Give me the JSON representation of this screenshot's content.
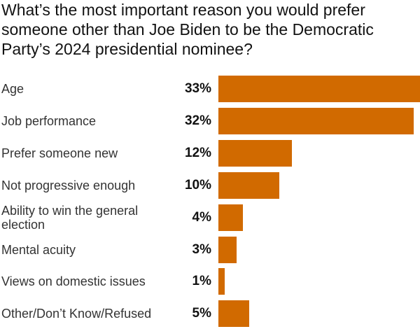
{
  "title": "What’s the most important reason you would prefer someone other than Joe Biden to be the Democratic Party’s 2024 presidential nominee?",
  "colors": {
    "bar": "#d16a00"
  },
  "chart_data": {
    "type": "bar",
    "orientation": "horizontal",
    "title": "What’s the most important reason you would prefer someone other than Joe Biden to be the Democratic Party’s 2024 presidential nominee?",
    "categories": [
      "Age",
      "Job performance",
      "Prefer someone new",
      "Not progressive enough",
      "Ability to win the general election",
      "Mental acuity",
      "Views on domestic issues",
      "Other/Don’t Know/Refused"
    ],
    "values": [
      33,
      32,
      12,
      10,
      4,
      3,
      1,
      5
    ],
    "value_labels": [
      "33%",
      "32%",
      "12%",
      "10%",
      "4%",
      "3%",
      "1%",
      "5%"
    ],
    "xlim": [
      0,
      33
    ],
    "grid": false,
    "legend": "none"
  }
}
